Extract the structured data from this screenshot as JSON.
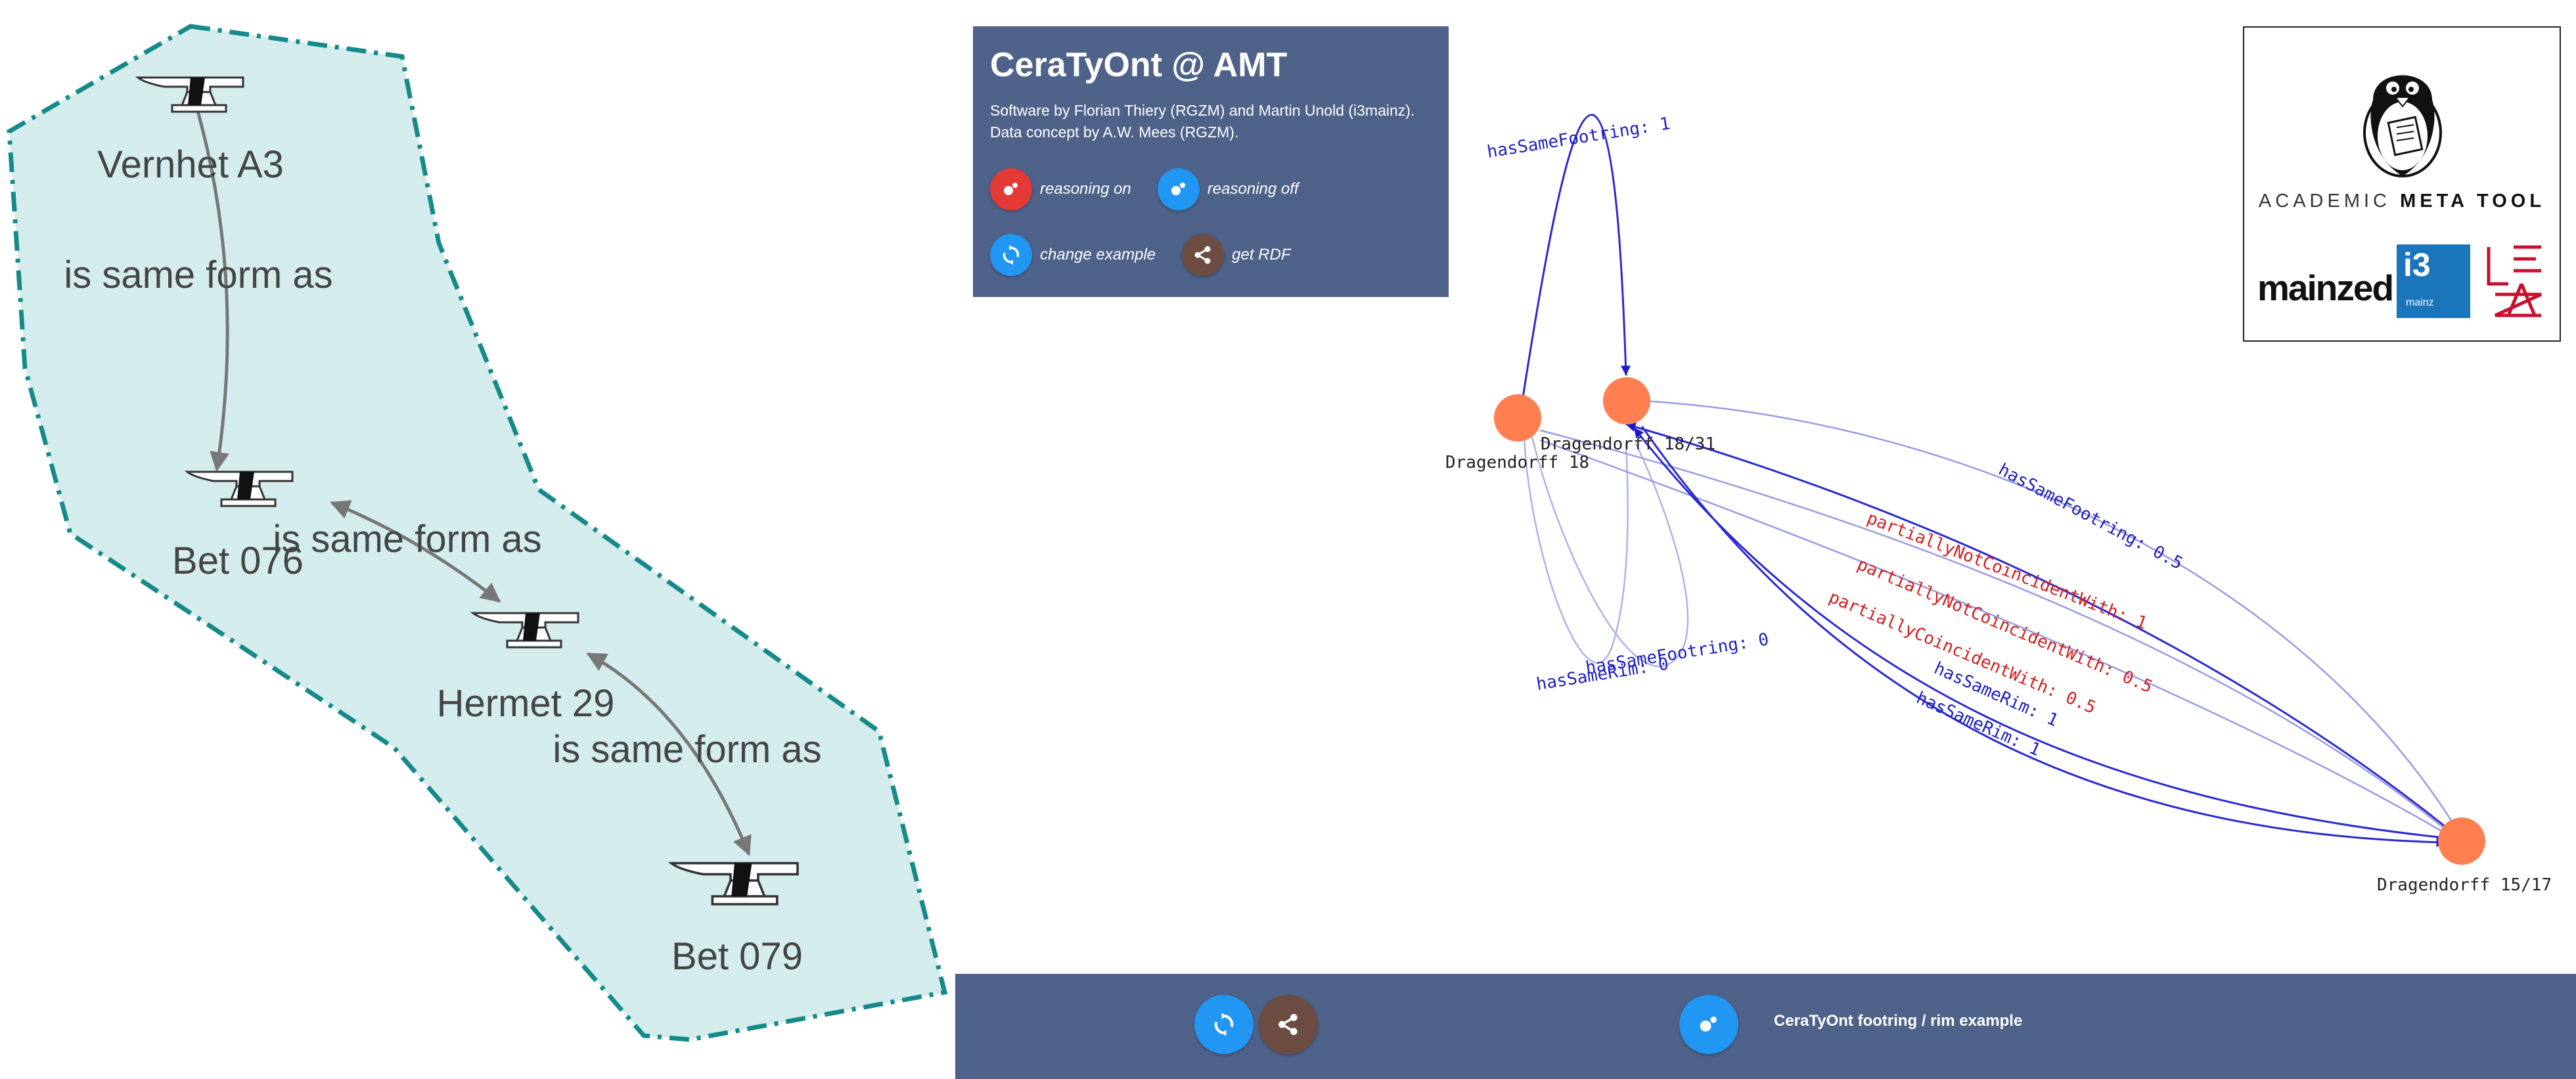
{
  "left_diagram": {
    "nodes": [
      {
        "label": "Vernhet A3"
      },
      {
        "label": "Bet 076"
      },
      {
        "label": "Hermet 29"
      },
      {
        "label": "Bet 079"
      }
    ],
    "edge_labels": [
      "is same form as",
      "is same form as",
      "is same form as"
    ]
  },
  "info": {
    "title": "CeraTyOnt @ AMT",
    "credits_line1": "Software by Florian Thiery (RGZM) and Martin Unold (i3mainz).",
    "credits_line2": "Data concept by A.W. Mees (RGZM).",
    "buttons": [
      {
        "label": "reasoning on",
        "color": "#e53935",
        "icon": "reasoning-icon"
      },
      {
        "label": "reasoning off",
        "color": "#2196f3",
        "icon": "reasoning-icon"
      },
      {
        "label": "change example",
        "color": "#2196f3",
        "icon": "sync-icon"
      },
      {
        "label": "get RDF",
        "color": "#6d4c41",
        "icon": "share-icon"
      }
    ]
  },
  "logos": {
    "amt_text_part1": "ACADEMIC ",
    "amt_text_part2": "META TOOL",
    "mainzed": "mainzed",
    "i3_big": "i3",
    "i3_small": "mainz"
  },
  "graph": {
    "node_color": "#ff7f50",
    "nodes": [
      {
        "label": "Dragendorff 18"
      },
      {
        "label": "Dragendorff 18/31"
      },
      {
        "label": "Dragendorff 15/17"
      }
    ],
    "edge_labels": {
      "hasSameFootring_1": "hasSameFootring: 1",
      "hasSameFootring_05": "hasSameFootring: 0.5",
      "hasSameFootring_0": "hasSameFootring: 0",
      "hasSameRim_0": "hasSameRim: 0",
      "partiallyNotCoincidentWith_1": "partiallyNotCoincidentWith: 1",
      "partiallyNotCoincidentWith_05": "partiallyNotCoincidentWith: 0.5",
      "partiallyCoincidentWith_05": "partiallyCoincidentWith: 0.5",
      "hasSameRim_1a": "hasSameRim: 1",
      "hasSameRim_1b": "hasSameRim: 1"
    }
  },
  "footer": {
    "label": "CeraTyOnt footring / rim example",
    "color": "#4f6289"
  }
}
